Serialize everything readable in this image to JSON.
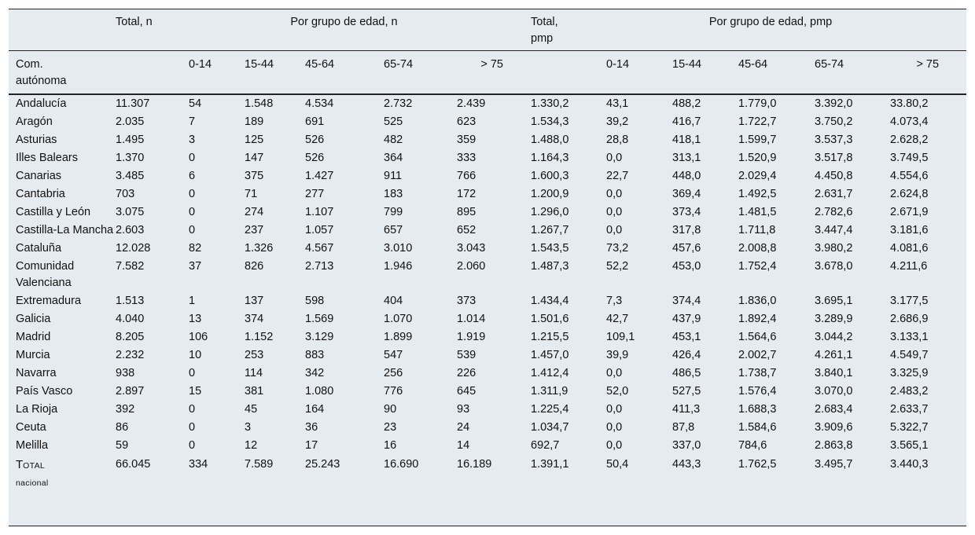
{
  "headers": {
    "total_n": "Total, n",
    "age_group_n": "Por grupo de edad, n",
    "total_pmp_line1": "Total,",
    "total_pmp_line2": "pmp",
    "age_group_pmp": "Por grupo de edad, pmp",
    "region_line1": "Com.",
    "region_line2": "autónoma",
    "age_bands": [
      "0-14",
      "15-44",
      "45-64",
      "65-74",
      "> 75"
    ]
  },
  "rows": [
    [
      "Andalucía",
      "11.307",
      "54",
      "1.548",
      "4.534",
      "2.732",
      "2.439",
      "1.330,2",
      "43,1",
      "488,2",
      "1.779,0",
      "3.392,0",
      "33.80,2"
    ],
    [
      "Aragón",
      "2.035",
      "7",
      "189",
      "691",
      "525",
      "623",
      "1.534,3",
      "39,2",
      "416,7",
      "1.722,7",
      "3.750,2",
      "4.073,4"
    ],
    [
      "Asturias",
      "1.495",
      "3",
      "125",
      "526",
      "482",
      "359",
      "1.488,0",
      "28,8",
      "418,1",
      "1.599,7",
      "3.537,3",
      "2.628,2"
    ],
    [
      "Illes Balears",
      "1.370",
      "0",
      "147",
      "526",
      "364",
      "333",
      "1.164,3",
      "0,0",
      "313,1",
      "1.520,9",
      "3.517,8",
      "3.749,5"
    ],
    [
      "Canarias",
      "3.485",
      "6",
      "375",
      "1.427",
      "911",
      "766",
      "1.600,3",
      "22,7",
      "448,0",
      "2.029,4",
      "4.450,8",
      "4.554,6"
    ],
    [
      "Cantabria",
      "703",
      "0",
      "71",
      "277",
      "183",
      "172",
      "1.200,9",
      "0,0",
      "369,4",
      "1.492,5",
      "2.631,7",
      "2.624,8"
    ],
    [
      "Castilla y León",
      "3.075",
      "0",
      "274",
      "1.107",
      "799",
      "895",
      "1.296,0",
      "0,0",
      "373,4",
      "1.481,5",
      "2.782,6",
      "2.671,9"
    ],
    [
      "Castilla-La Mancha",
      "2.603",
      "0",
      "237",
      "1.057",
      "657",
      "652",
      "1.267,7",
      "0,0",
      "317,8",
      "1.711,8",
      "3.447,4",
      "3.181,6"
    ],
    [
      "Cataluña",
      "12.028",
      "82",
      "1.326",
      "4.567",
      "3.010",
      "3.043",
      "1.543,5",
      "73,2",
      "457,6",
      "2.008,8",
      "3.980,2",
      "4.081,6"
    ],
    [
      "Comunidad Valenciana",
      "7.582",
      "37",
      "826",
      "2.713",
      "1.946",
      "2.060",
      "1.487,3",
      "52,2",
      "453,0",
      "1.752,4",
      "3.678,0",
      "4.211,6"
    ],
    [
      "Extremadura",
      "1.513",
      "1",
      "137",
      "598",
      "404",
      "373",
      "1.434,4",
      "7,3",
      "374,4",
      "1.836,0",
      "3.695,1",
      "3.177,5"
    ],
    [
      "Galicia",
      "4.040",
      "13",
      "374",
      "1.569",
      "1.070",
      "1.014",
      "1.501,6",
      "42,7",
      "437,9",
      "1.892,4",
      "3.289,9",
      "2.686,9"
    ],
    [
      "Madrid",
      "8.205",
      "106",
      "1.152",
      "3.129",
      "1.899",
      "1.919",
      "1.215,5",
      "109,1",
      "453,1",
      "1.564,6",
      "3.044,2",
      "3.133,1"
    ],
    [
      "Murcia",
      "2.232",
      "10",
      "253",
      "883",
      "547",
      "539",
      "1.457,0",
      "39,9",
      "426,4",
      "2.002,7",
      "4.261,1",
      "4.549,7"
    ],
    [
      "Navarra",
      "938",
      "0",
      "114",
      "342",
      "256",
      "226",
      "1.412,4",
      "0,0",
      "486,5",
      "1.738,7",
      "3.840,1",
      "3.325,9"
    ],
    [
      "País Vasco",
      "2.897",
      "15",
      "381",
      "1.080",
      "776",
      "645",
      "1.311,9",
      "52,0",
      "527,5",
      "1.576,4",
      "3.070,0",
      "2.483,2"
    ],
    [
      "La Rioja",
      "392",
      "0",
      "45",
      "164",
      "90",
      "93",
      "1.225,4",
      "0,0",
      "411,3",
      "1.688,3",
      "2.683,4",
      "2.633,7"
    ],
    [
      "Ceuta",
      "86",
      "0",
      "3",
      "36",
      "23",
      "24",
      "1.034,7",
      "0,0",
      "87,8",
      "1.584,6",
      "3.909,6",
      "5.322,7"
    ],
    [
      "Melilla",
      "59",
      "0",
      "12",
      "17",
      "16",
      "14",
      "692,7",
      "0,0",
      "337,0",
      "784,6",
      "2.863,8",
      "3.565,1"
    ]
  ],
  "total_row": {
    "label_cap": "T",
    "label_rest": "otal",
    "label_line2": "nacional",
    "values": [
      "66.045",
      "334",
      "7.589",
      "25.243",
      "16.690",
      "16.189",
      "1.391,1",
      "50,4",
      "443,3",
      "1.762,5",
      "3.495,7",
      "3.440,3"
    ]
  }
}
